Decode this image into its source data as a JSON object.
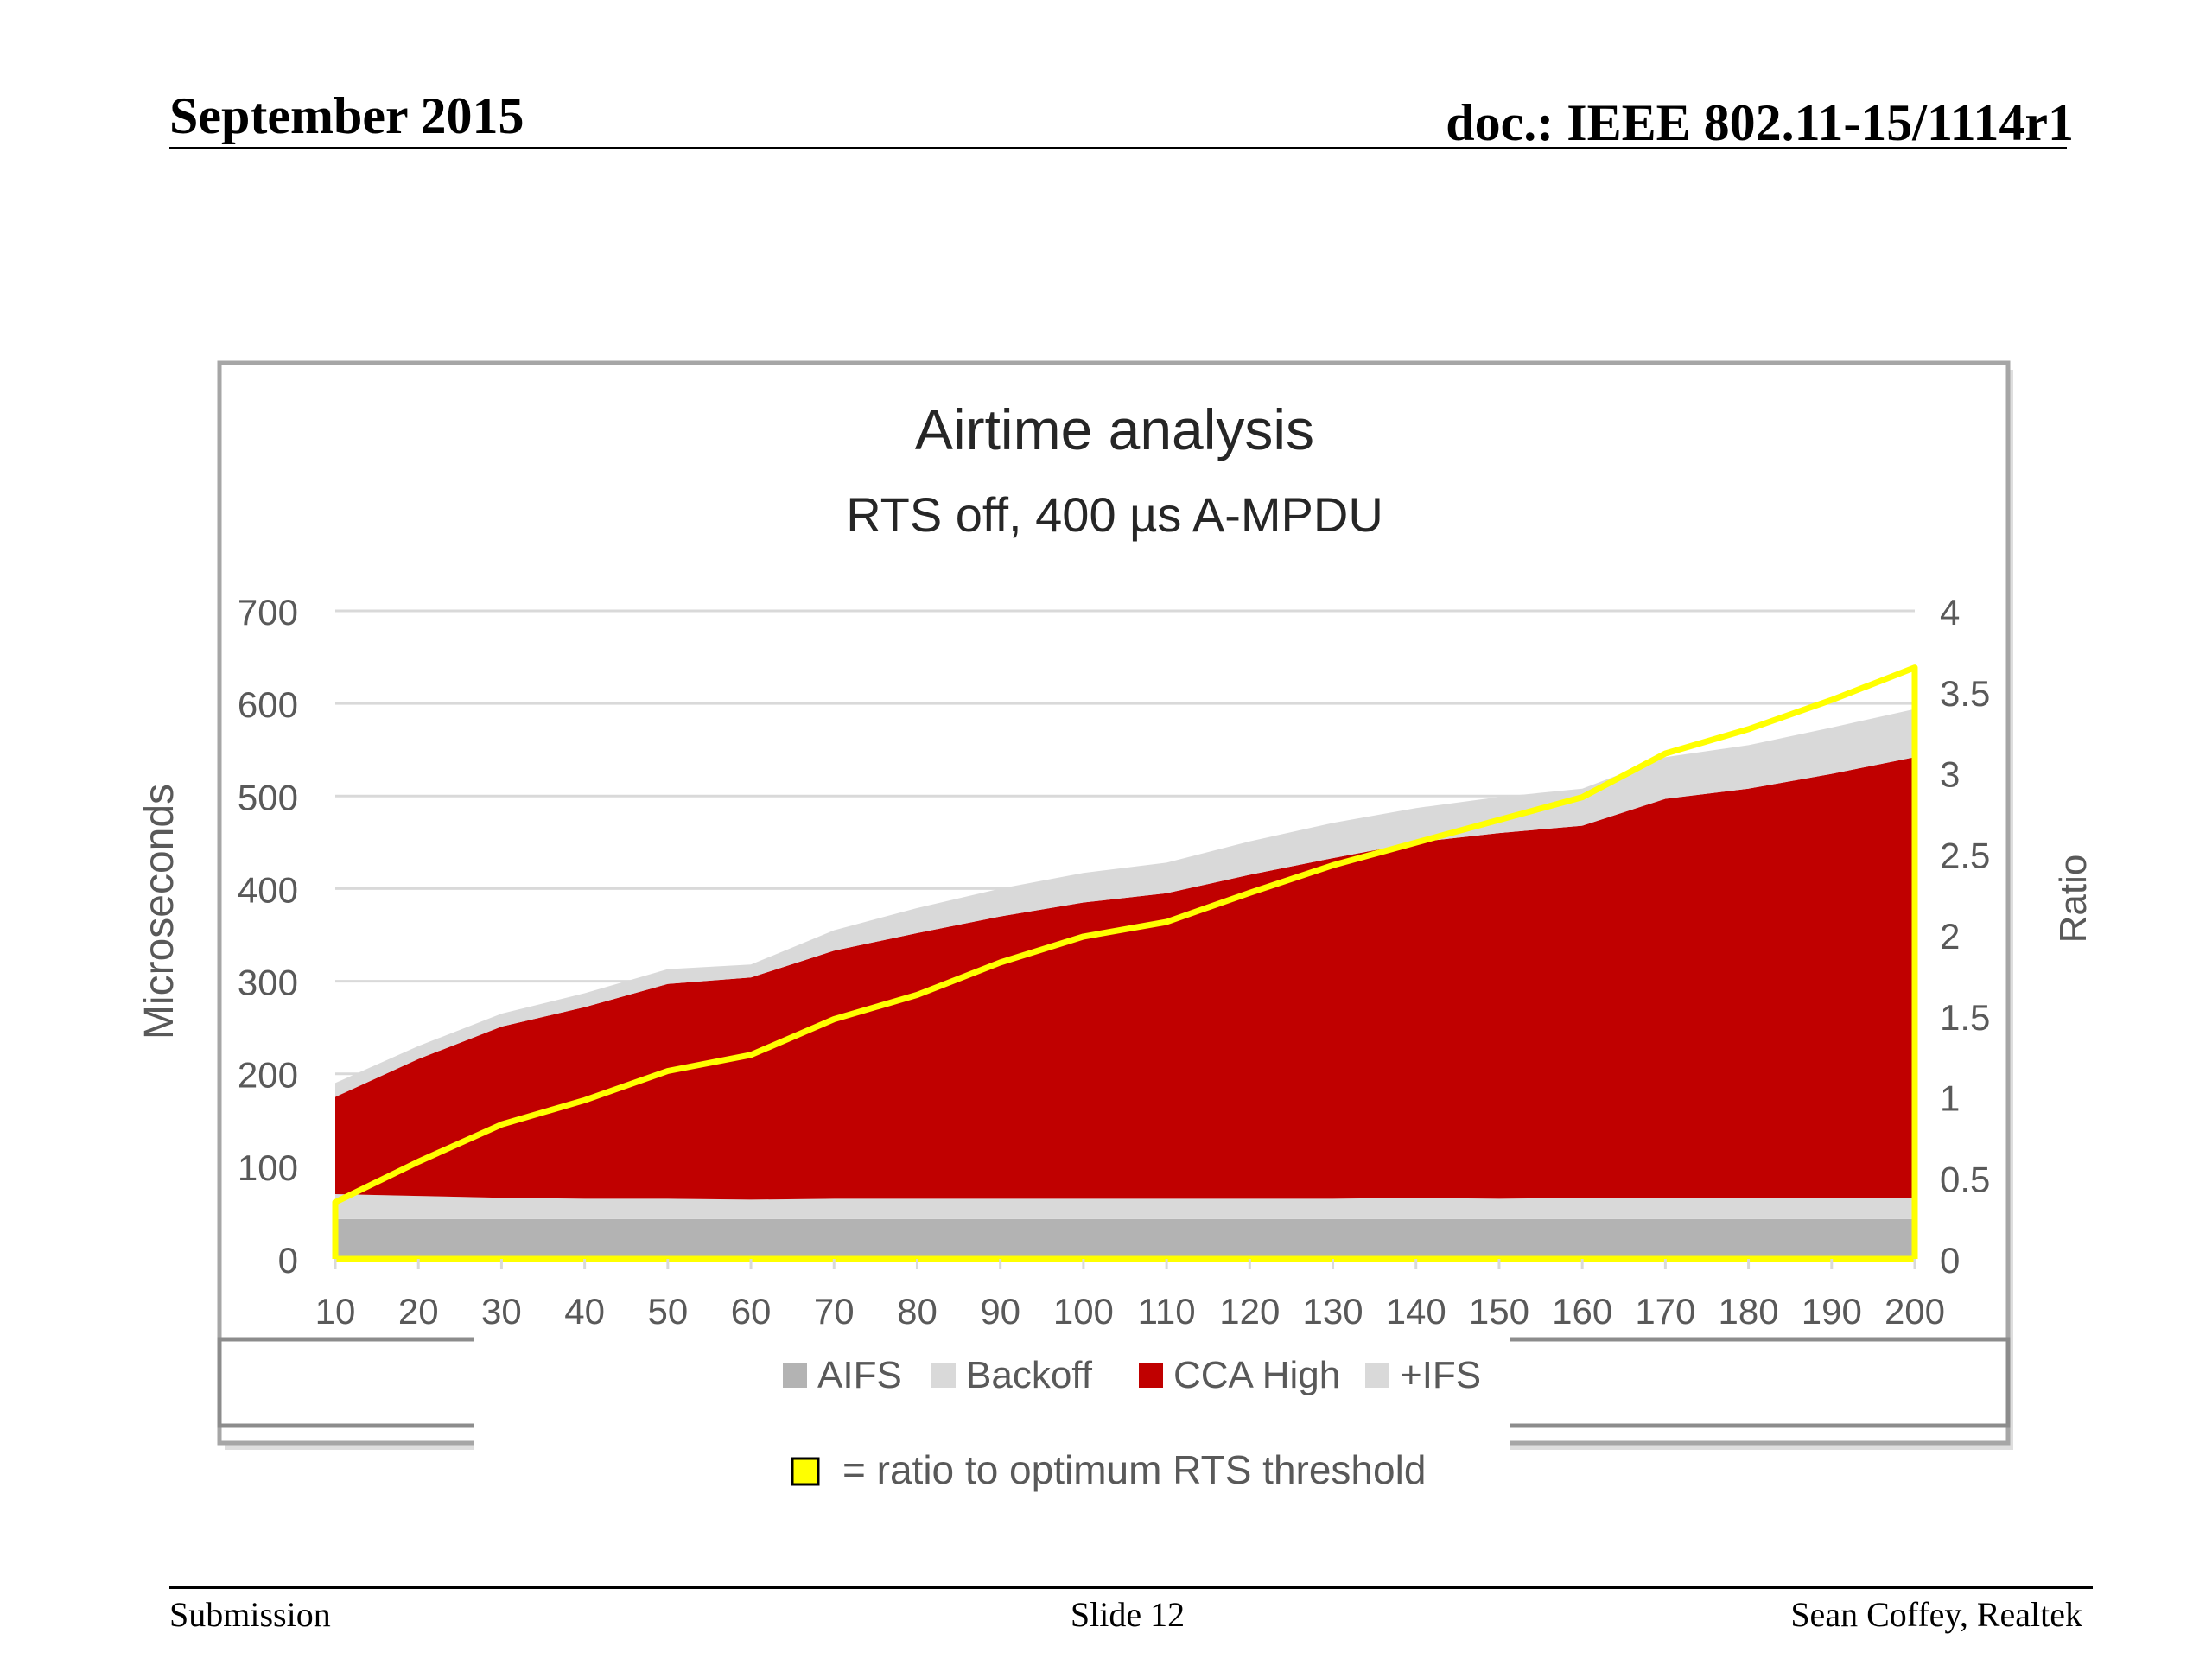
{
  "header": {
    "date": "September 2015",
    "doc": "doc.: IEEE 802.11-15/1114r1"
  },
  "footer": {
    "left": "Submission",
    "center": "Slide 12",
    "right": "Sean Coffey, Realtek"
  },
  "chart_data": {
    "type": "area",
    "title": "Airtime analysis",
    "subtitle": "RTS off, 400 µs A-MPDU",
    "ylabel": "Microseconds",
    "y2label": "Ratio",
    "ylim": [
      0,
      700
    ],
    "y2lim": [
      0,
      4
    ],
    "yticks": [
      "0",
      "100",
      "200",
      "300",
      "400",
      "500",
      "600",
      "700"
    ],
    "y2ticks": [
      "0",
      "0.5",
      "1",
      "1.5",
      "2",
      "2.5",
      "3",
      "3.5",
      "4"
    ],
    "x": [
      10,
      20,
      30,
      40,
      50,
      60,
      70,
      80,
      90,
      100,
      110,
      120,
      130,
      140,
      150,
      160,
      170,
      180,
      190,
      200
    ],
    "xticks": [
      "10",
      "20",
      "30",
      "40",
      "50",
      "60",
      "70",
      "80",
      "90",
      "100",
      "110",
      "120",
      "130",
      "140",
      "150",
      "160",
      "170",
      "180",
      "190",
      "200"
    ],
    "grid": true,
    "legend_position": "bottom",
    "stacked": true,
    "series": [
      {
        "name": "AIFS",
        "color": "#b3b3b3",
        "values": [
          43,
          43,
          43,
          43,
          43,
          43,
          43,
          43,
          43,
          43,
          43,
          43,
          43,
          43,
          43,
          43,
          43,
          43,
          43,
          43
        ]
      },
      {
        "name": "Backoff",
        "color": "#d9d9d9",
        "values": [
          27,
          25,
          23,
          22,
          22,
          21,
          22,
          22,
          22,
          22,
          22,
          22,
          22,
          23,
          22,
          23,
          23,
          23,
          23,
          23
        ]
      },
      {
        "name": "CCA High",
        "color": "#c00000",
        "values": [
          105,
          148,
          185,
          207,
          232,
          240,
          268,
          287,
          305,
          320,
          330,
          350,
          368,
          384,
          395,
          402,
          431,
          442,
          458,
          476
        ]
      },
      {
        "name": "+IFS",
        "color": "#d9d9d9",
        "values": [
          15,
          14,
          14,
          15,
          16,
          14,
          22,
          27,
          30,
          32,
          33,
          36,
          38,
          37,
          39,
          40,
          45,
          47,
          50,
          52
        ]
      }
    ],
    "line_series": {
      "label": "= ratio to optimum RTS threshold",
      "color": "#ffff00",
      "axis": "secondary",
      "values": [
        0.35,
        0.6,
        0.83,
        0.98,
        1.16,
        1.26,
        1.48,
        1.63,
        1.83,
        1.99,
        2.08,
        2.26,
        2.43,
        2.57,
        2.71,
        2.85,
        3.12,
        3.27,
        3.45,
        3.65
      ]
    }
  }
}
